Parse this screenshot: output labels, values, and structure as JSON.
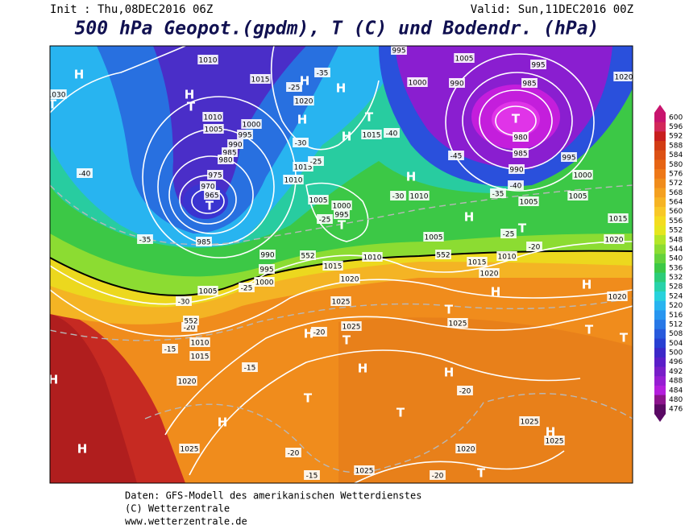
{
  "header": {
    "init": "Init : Thu,08DEC2016 06Z",
    "valid": "Valid: Sun,11DEC2016 00Z",
    "title": "500 hPa Geopot.(gpdm), T (C) und Bodendr. (hPa)"
  },
  "colorbar": {
    "labels": [
      600,
      596,
      592,
      588,
      584,
      580,
      576,
      572,
      568,
      564,
      560,
      556,
      552,
      548,
      544,
      540,
      536,
      532,
      528,
      524,
      520,
      516,
      512,
      508,
      504,
      500,
      496,
      492,
      488,
      484,
      480,
      476
    ],
    "colors": [
      "#c8146e",
      "#d2285a",
      "#c81e1e",
      "#d23c14",
      "#dc5014",
      "#e66414",
      "#ee7818",
      "#f08c1c",
      "#f4a020",
      "#f6b424",
      "#f8c828",
      "#f4dc20",
      "#e6e61e",
      "#b4e628",
      "#8cdc32",
      "#64d23c",
      "#3cc846",
      "#2ccc78",
      "#28d2aa",
      "#28d2dc",
      "#28b4f0",
      "#2896f0",
      "#2878e6",
      "#285adc",
      "#2840d2",
      "#3c28c8",
      "#5a1ec8",
      "#781ec8",
      "#961ed2",
      "#b41edc",
      "#8c148c",
      "#5a0a64"
    ]
  },
  "map_labels": [
    "H",
    "T",
    "1030",
    "1010",
    "H",
    "T",
    "1015",
    "1020",
    "H",
    "H",
    "1010",
    "1005",
    "1000",
    "995",
    "990",
    "985",
    "980",
    "975",
    "970",
    "965",
    "T",
    "985",
    "H",
    "T",
    "1015",
    "H",
    "1015",
    "1010",
    "1005",
    "1000",
    "995",
    "T",
    "990",
    "995",
    "1000",
    "1005",
    "995",
    "1005",
    "995",
    "1020",
    "1000",
    "990",
    "985",
    "T",
    "980",
    "985",
    "990",
    "995",
    "1000",
    "1005",
    "1005",
    "H",
    "1010",
    "H",
    "T",
    "1015",
    "1005",
    "1010",
    "1015",
    "1020",
    "1010",
    "1015",
    "1020",
    "H",
    "H",
    "1020",
    "1025",
    "1025",
    "1025",
    "H",
    "T",
    "T",
    "1010",
    "1015",
    "1020",
    "H",
    "H",
    "H",
    "T",
    "T",
    "H",
    "H",
    "1025",
    "1025",
    "1020",
    "1025",
    "H",
    "1025",
    "T",
    "T",
    "T",
    "-40",
    "-35",
    "-30",
    "-25",
    "-20",
    "-15",
    "-15",
    "-20",
    "-20",
    "-20",
    "-15",
    "-20",
    "-45",
    "-40",
    "-35",
    "-25",
    "-30",
    "-25",
    "-25",
    "-30",
    "-25",
    "-20",
    "-35",
    "-40",
    "552",
    "552",
    "552",
    "1020"
  ],
  "footer": [
    "Daten: GFS-Modell des amerikanischen Wetterdienstes",
    "(C) Wetterzentrale",
    "www.wetterzentrale.de"
  ]
}
